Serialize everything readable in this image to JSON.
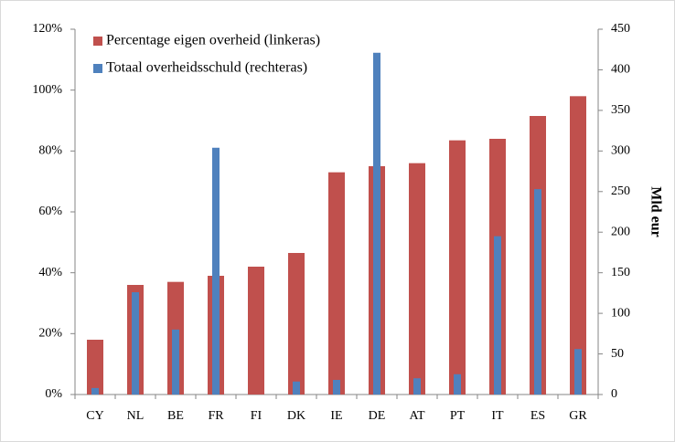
{
  "chart_data": {
    "type": "bar",
    "categories": [
      "CY",
      "NL",
      "BE",
      "FR",
      "FI",
      "DK",
      "IE",
      "DE",
      "AT",
      "PT",
      "IT",
      "ES",
      "GR"
    ],
    "series": [
      {
        "name": "Percentage eigen overheid (linkeras)",
        "color": "#c0504d",
        "values": [
          18,
          36,
          37,
          39,
          42,
          46.5,
          73,
          75,
          76,
          83.5,
          84,
          91.5,
          98
        ]
      },
      {
        "name": "Totaal overheidsschuld (rechteras)",
        "color": "#4f81bd",
        "axis": "y2",
        "values": [
          8,
          126,
          80,
          304,
          0,
          16,
          18,
          421,
          20,
          25,
          195,
          253,
          56
        ]
      }
    ],
    "ylim": [
      0,
      120
    ],
    "yticks": [
      {
        "value": 0,
        "label": "0%"
      },
      {
        "value": 20,
        "label": "20%"
      },
      {
        "value": 40,
        "label": "40%"
      },
      {
        "value": 60,
        "label": "60%"
      },
      {
        "value": 80,
        "label": "80%"
      },
      {
        "value": 100,
        "label": "100%"
      },
      {
        "value": 120,
        "label": "120%"
      }
    ],
    "y2lim": [
      0,
      450
    ],
    "y2ticks": [
      0,
      50,
      100,
      150,
      200,
      250,
      300,
      350,
      400,
      450
    ],
    "y2label": "Mld eur",
    "legend": "top-left"
  }
}
